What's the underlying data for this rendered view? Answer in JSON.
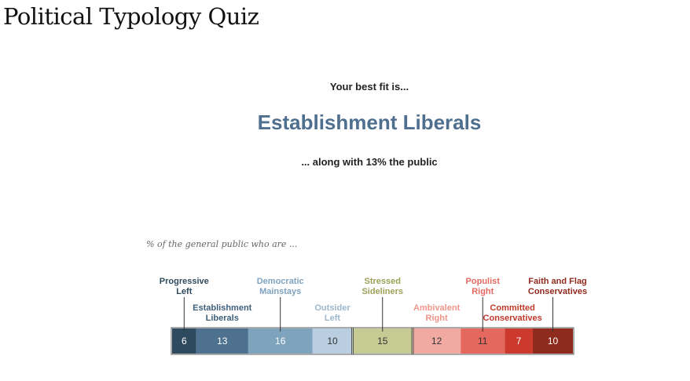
{
  "page": {
    "title": "Political Typology Quiz"
  },
  "result": {
    "intro": "Your best fit is...",
    "name": "Establishment Liberals",
    "share_text": "... along with 13% the public"
  },
  "chart_caption": "% of the general public who are ...",
  "chart_data": {
    "type": "bar",
    "orientation": "horizontal-stacked",
    "title": "",
    "categories": [
      "Progressive Left",
      "Establishment Liberals",
      "Democratic Mainstays",
      "Outsider Left",
      "Stressed Sideliners",
      "Ambivalent Right",
      "Populist Right",
      "Committed Conservatives",
      "Faith and Flag Conservatives"
    ],
    "label_lines": [
      [
        "Progressive",
        "Left"
      ],
      [
        "Establishment",
        "Liberals"
      ],
      [
        "Democratic",
        "Mainstays"
      ],
      [
        "Outsider",
        "Left"
      ],
      [
        "Stressed",
        "Sideliners"
      ],
      [
        "Ambivalent",
        "Right"
      ],
      [
        "Populist",
        "Right"
      ],
      [
        "Committed",
        "Conservatives"
      ],
      [
        "Faith and Flag",
        "Conservatives"
      ]
    ],
    "values": [
      6,
      13,
      16,
      10,
      15,
      12,
      11,
      7,
      10
    ],
    "colors": [
      "#2e4a5e",
      "#4e7190",
      "#7ea3bd",
      "#b9cee0",
      "#c6cb94",
      "#f0aaa2",
      "#e5685e",
      "#cb3a2c",
      "#8f2a1e"
    ],
    "label_colors": [
      "#2e4a5e",
      "#3e5f7c",
      "#7fa3c0",
      "#9db6cc",
      "#9ba158",
      "#f0958a",
      "#e26a60",
      "#c0392b",
      "#8f2a1e"
    ],
    "value_text_colors": [
      "#ffffff",
      "#ffffff",
      "#ffffff",
      "#333333",
      "#333333",
      "#333333",
      "#333333",
      "#ffffff",
      "#ffffff"
    ],
    "group_outline_color": "#555555",
    "highlighted_category": "Establishment Liberals"
  }
}
